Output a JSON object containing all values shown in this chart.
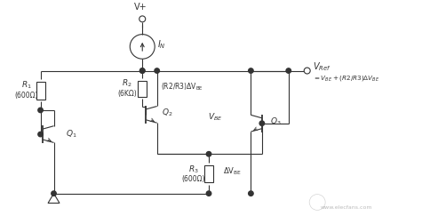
{
  "bg_color": "#ffffff",
  "line_color": "#333333",
  "line_width": 0.8,
  "fig_width": 4.85,
  "fig_height": 2.43,
  "dpi": 100,
  "watermark_text": "www.elecfans.com",
  "watermark_color": "#aaaaaa",
  "xlim": [
    0,
    9.7
  ],
  "ylim": [
    0,
    4.86
  ],
  "vplus_x": 3.2,
  "vplus_y": 4.4,
  "cs_y": 3.85,
  "cs_r": 0.28,
  "bus_y": 3.3,
  "x_left_rail": 0.9,
  "x_r2": 3.2,
  "x_q2c": 4.3,
  "x_r3": 4.7,
  "x_q3b": 5.9,
  "x_right_rail": 6.5,
  "x_out": 6.7,
  "y_bot": 0.5,
  "y_q1c": 2.4,
  "y_q1b": 1.85,
  "y_q2b": 2.3,
  "y_r3_top": 1.4,
  "y_q3_mid": 2.1
}
